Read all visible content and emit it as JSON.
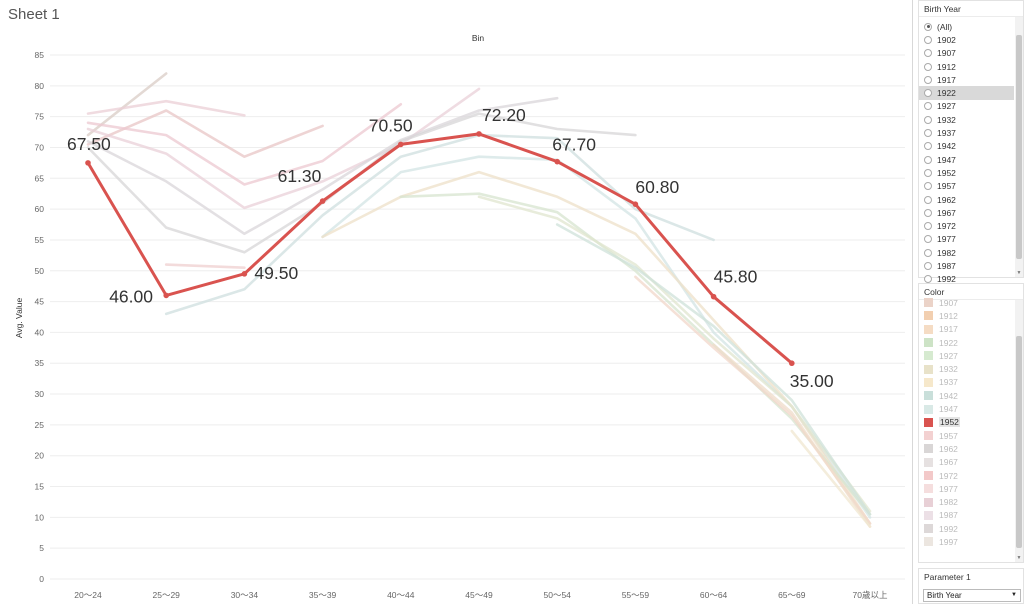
{
  "sheet": {
    "title": "Sheet 1"
  },
  "chart_data": {
    "type": "line",
    "title": "Bin",
    "xlabel": "Bin",
    "ylabel": "Avg. Value",
    "ylim": [
      0,
      85
    ],
    "yticks": [
      0,
      5,
      10,
      15,
      20,
      25,
      30,
      35,
      40,
      45,
      50,
      55,
      60,
      65,
      70,
      75,
      80,
      85
    ],
    "categories": [
      "20〜24",
      "25〜29",
      "30〜34",
      "35〜39",
      "40〜44",
      "45〜49",
      "50〜54",
      "55〜59",
      "60〜64",
      "65〜69",
      "70歳以上"
    ],
    "highlighted": "1952",
    "series": [
      {
        "name": "1902",
        "color": "#e3cfc5",
        "values": [
          null,
          null,
          null,
          null,
          null,
          null,
          null,
          null,
          null,
          null,
          null
        ]
      },
      {
        "name": "1907",
        "color": "#d9ccc6",
        "values": [
          72.0,
          82.0,
          null,
          null,
          null,
          null,
          null,
          null,
          null,
          null,
          null
        ]
      },
      {
        "name": "1912",
        "color": "#e8c6c6",
        "values": [
          70.5,
          76.0,
          68.5,
          73.5,
          null,
          null,
          null,
          null,
          null,
          null,
          null
        ]
      },
      {
        "name": "1917",
        "color": "#ebcfd6",
        "values": [
          75.5,
          77.5,
          75.2,
          null,
          null,
          null,
          null,
          null,
          null,
          null,
          null
        ]
      },
      {
        "name": "1922",
        "color": "#ecc8d0",
        "values": [
          74.0,
          72.0,
          64.0,
          67.8,
          77.0,
          null,
          null,
          null,
          null,
          null,
          null
        ]
      },
      {
        "name": "1927",
        "color": "#ead0d8",
        "values": [
          73.0,
          69.0,
          60.2,
          64.5,
          70.5,
          79.5,
          null,
          null,
          null,
          null,
          null
        ]
      },
      {
        "name": "1932",
        "color": "#d9d5d9",
        "values": [
          71.0,
          64.5,
          56.0,
          63.2,
          71.2,
          76.0,
          78.0,
          null,
          null,
          null,
          null
        ]
      },
      {
        "name": "1937",
        "color": "#d7d5d7",
        "values": [
          70.0,
          57.0,
          53.0,
          61.0,
          71.0,
          75.5,
          73.0,
          72.0,
          null,
          null,
          null
        ]
      },
      {
        "name": "1942",
        "color": "#cfdfdf",
        "values": [
          null,
          43.0,
          47.0,
          59.0,
          68.5,
          72.0,
          71.5,
          60.0,
          55.0,
          null,
          null
        ]
      },
      {
        "name": "1947",
        "color": "#d3e4e4",
        "values": [
          null,
          null,
          null,
          55.5,
          66.0,
          68.5,
          68.0,
          58.5,
          40.0,
          28.0,
          10.0
        ]
      },
      {
        "name": "1952",
        "color": "#d9534f",
        "values": [
          67.5,
          46.0,
          49.5,
          61.3,
          70.5,
          72.2,
          67.7,
          60.8,
          45.8,
          35.0,
          null
        ]
      },
      {
        "name": "1957",
        "color": "#efcfcf",
        "values": [
          null,
          51.0,
          50.5,
          null,
          null,
          null,
          null,
          null,
          null,
          null,
          null
        ]
      },
      {
        "name": "1962",
        "color": "#eee0c8",
        "values": [
          null,
          null,
          null,
          55.5,
          62.0,
          66.0,
          62.0,
          56.0,
          42.0,
          28.0,
          9.0
        ]
      },
      {
        "name": "1967",
        "color": "#d7e4cf",
        "values": [
          null,
          null,
          null,
          null,
          62.0,
          62.5,
          59.5,
          50.0,
          38.0,
          26.0,
          10.5
        ]
      },
      {
        "name": "1972",
        "color": "#e0e5cf",
        "values": [
          null,
          null,
          null,
          null,
          null,
          62.0,
          58.5,
          51.0,
          39.0,
          28.0,
          11.0
        ]
      },
      {
        "name": "1977",
        "color": "#cfe2da",
        "values": [
          null,
          null,
          null,
          null,
          null,
          null,
          57.5,
          50.5,
          41.0,
          29.0,
          10.5
        ]
      },
      {
        "name": "1982",
        "color": "#f2d7c9",
        "values": [
          null,
          null,
          null,
          null,
          null,
          null,
          null,
          49.0,
          37.5,
          26.5,
          9.0
        ]
      },
      {
        "name": "1987",
        "color": "#efdcc9",
        "values": [
          null,
          null,
          null,
          null,
          null,
          null,
          null,
          null,
          38.0,
          27.0,
          8.5
        ]
      },
      {
        "name": "1992",
        "color": "#f0e7d0",
        "values": [
          null,
          null,
          null,
          null,
          null,
          null,
          null,
          null,
          null,
          24.0,
          8.5
        ]
      },
      {
        "name": "1997",
        "color": "#cfe0e5",
        "values": [
          null,
          null,
          null,
          null,
          null,
          null,
          null,
          null,
          null,
          null,
          9.5
        ]
      }
    ],
    "data_labels": [
      "67.50",
      "46.00",
      "49.50",
      "61.30",
      "70.50",
      "72.20",
      "67.70",
      "60.80",
      "45.80",
      "35.00"
    ]
  },
  "birth_filter": {
    "title": "Birth Year",
    "items": [
      "(All)",
      "1902",
      "1907",
      "1912",
      "1917",
      "1922",
      "1927",
      "1932",
      "1937",
      "1942",
      "1947",
      "1952",
      "1957",
      "1962",
      "1967",
      "1972",
      "1977",
      "1982",
      "1987",
      "1992"
    ],
    "selected": "(All)",
    "highlighted": "1922"
  },
  "color_legend": {
    "title": "Color",
    "items": [
      {
        "label": "1907",
        "color": "#ebd3c8"
      },
      {
        "label": "1912",
        "color": "#f2cfb0"
      },
      {
        "label": "1917",
        "color": "#f5dcc4"
      },
      {
        "label": "1922",
        "color": "#cde3c6"
      },
      {
        "label": "1927",
        "color": "#d6ead0"
      },
      {
        "label": "1932",
        "color": "#e8e2c9"
      },
      {
        "label": "1937",
        "color": "#f6e8cb"
      },
      {
        "label": "1942",
        "color": "#c9dfda"
      },
      {
        "label": "1947",
        "color": "#d9e9e6"
      },
      {
        "label": "1952",
        "color": "#d9534f"
      },
      {
        "label": "1957",
        "color": "#f3d1d1"
      },
      {
        "label": "1962",
        "color": "#d9d6d6"
      },
      {
        "label": "1967",
        "color": "#e6e1e1"
      },
      {
        "label": "1972",
        "color": "#f3c9c9"
      },
      {
        "label": "1977",
        "color": "#f5dede"
      },
      {
        "label": "1982",
        "color": "#e8d0d6"
      },
      {
        "label": "1987",
        "color": "#ece0e6"
      },
      {
        "label": "1992",
        "color": "#ddd8d8"
      },
      {
        "label": "1997",
        "color": "#ece6e0"
      }
    ],
    "active": "1952"
  },
  "parameter": {
    "title": "Parameter 1",
    "value": "Birth Year"
  }
}
